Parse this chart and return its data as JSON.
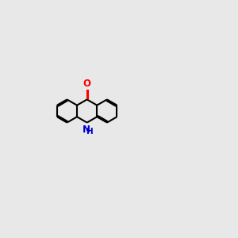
{
  "bg_color": "#e8e8e8",
  "bond_color": "#000000",
  "n_color": "#0000cd",
  "o_color": "#ff0000",
  "nh_teal_color": "#008080",
  "lw": 1.5,
  "figsize": [
    3.0,
    3.0
  ],
  "dpi": 100,
  "xlim": [
    0,
    10
  ],
  "ylim": [
    0,
    10
  ]
}
